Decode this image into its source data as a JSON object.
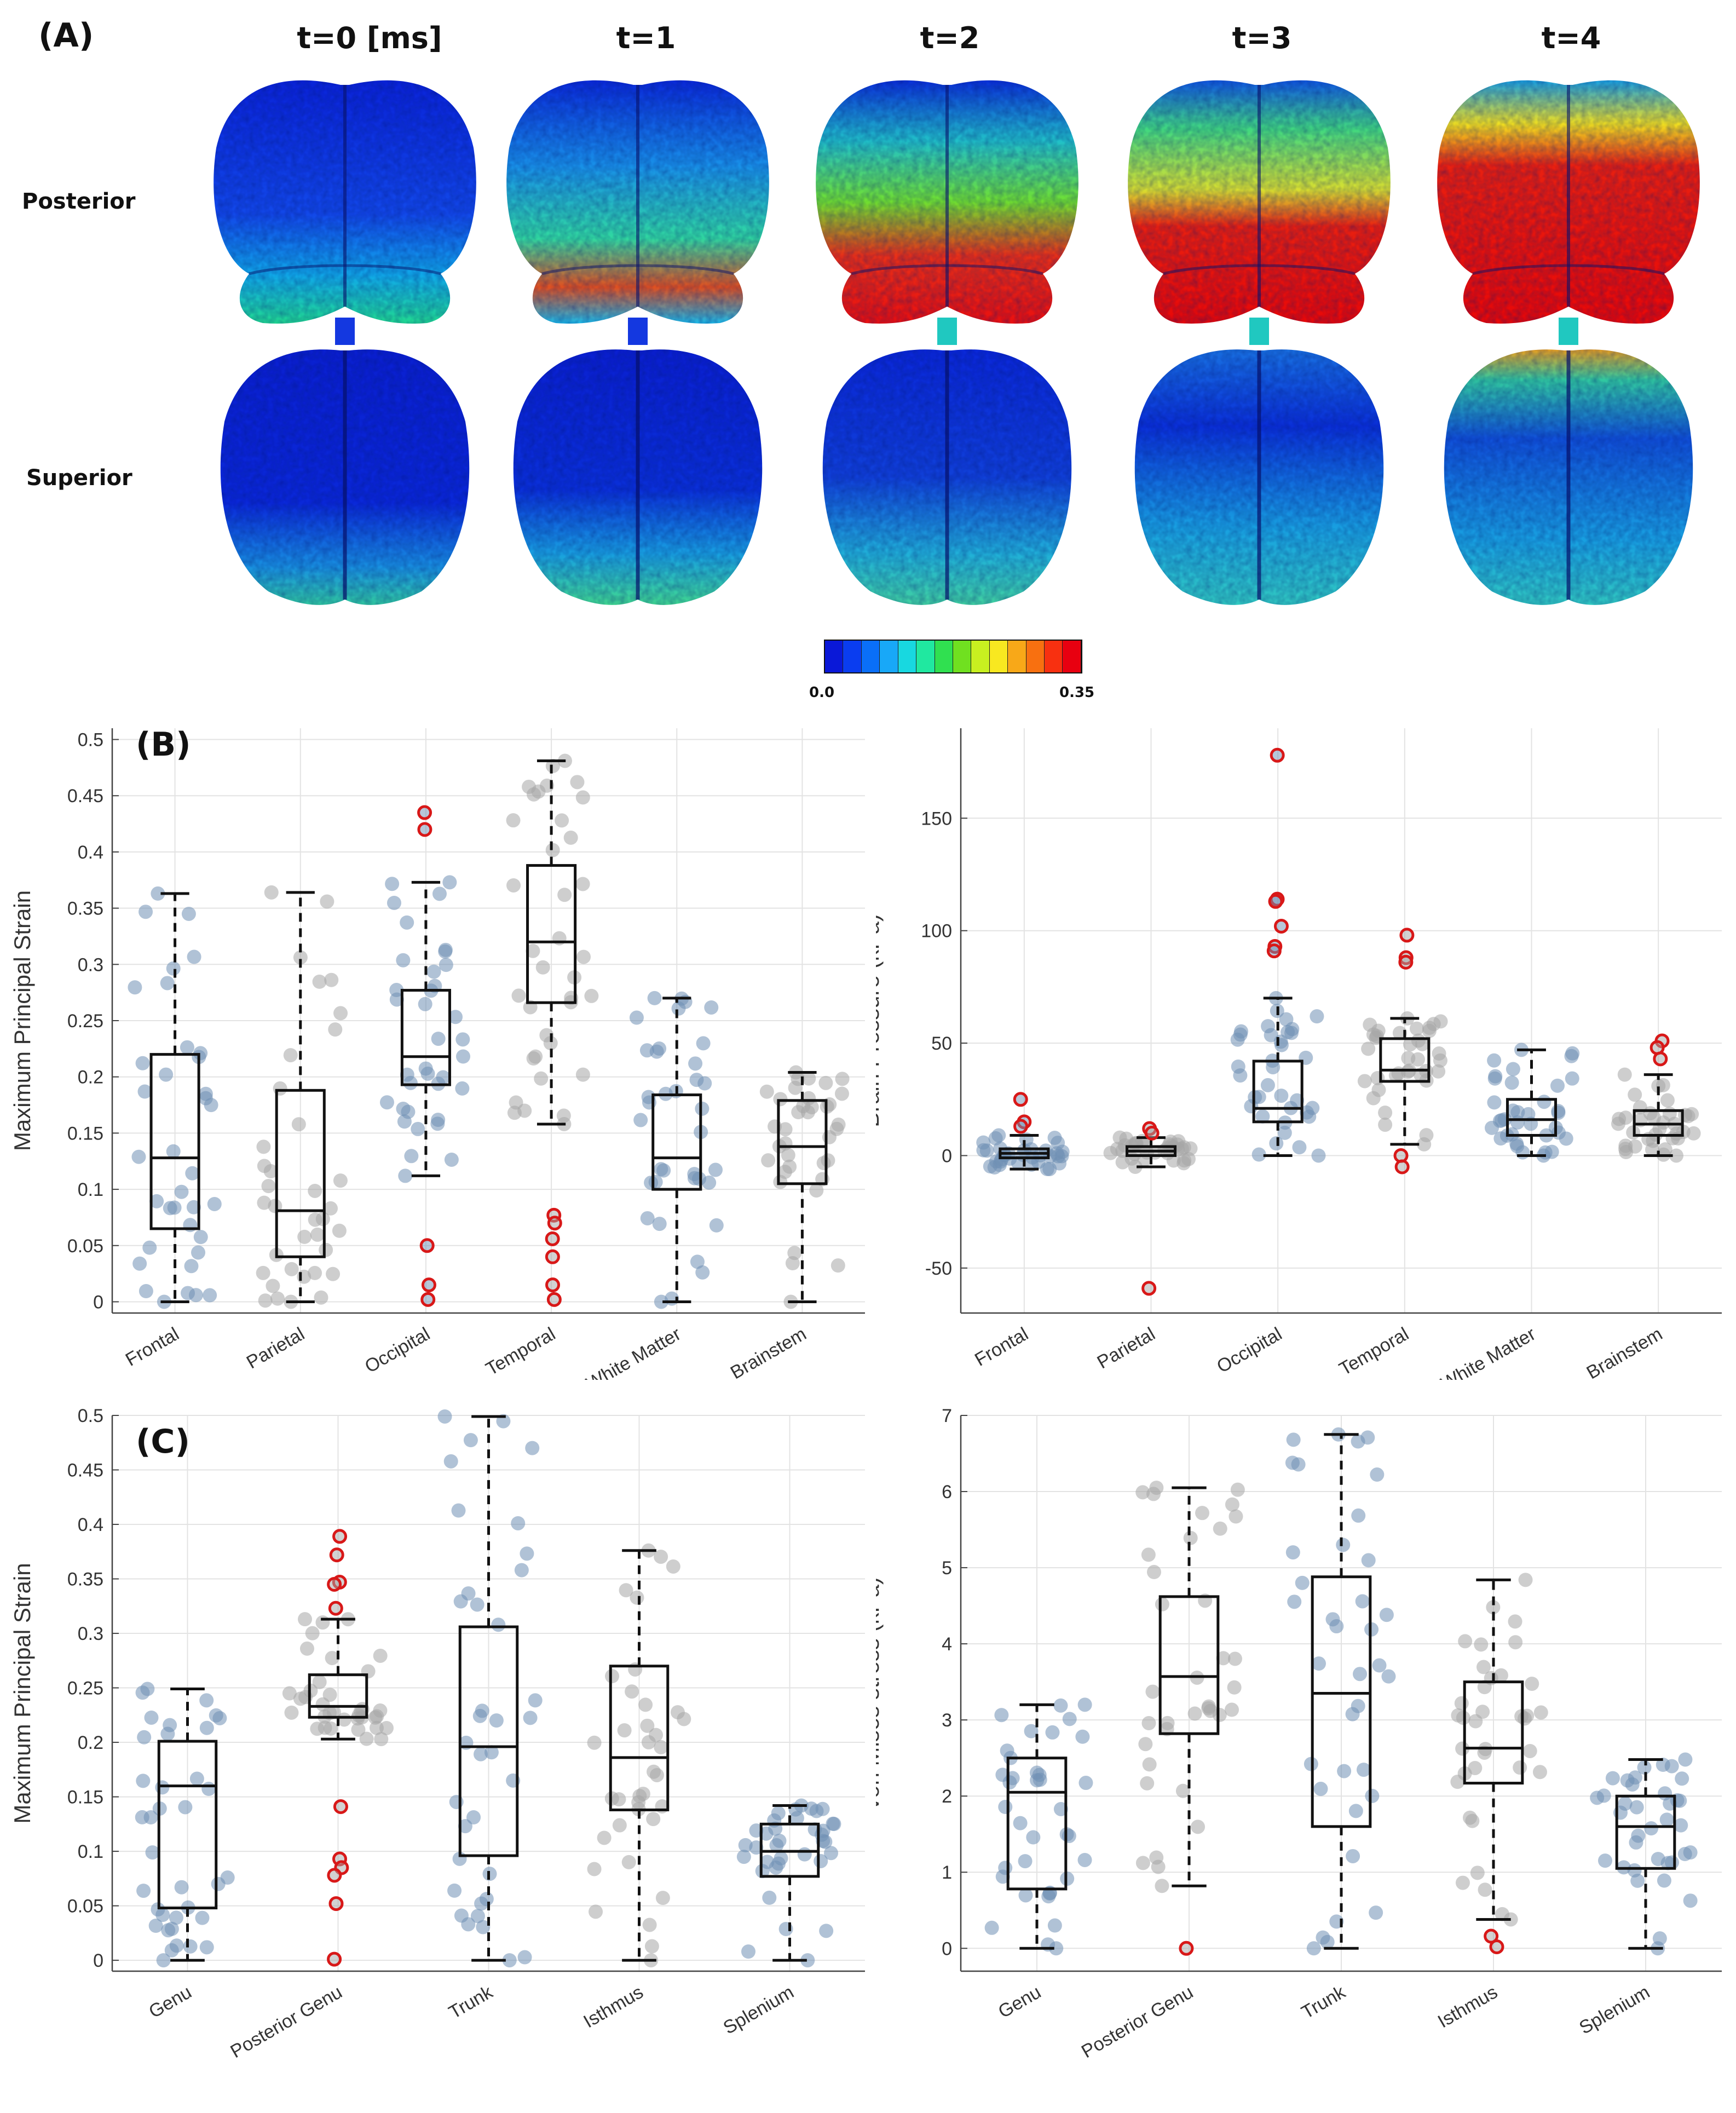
{
  "panels": {
    "A": {
      "label": "(A)",
      "time_labels": [
        "t=0 [ms]",
        "t=1",
        "t=2",
        "t=3",
        "t=4"
      ],
      "view_labels": [
        "Posterior",
        "Superior"
      ],
      "colorbar": {
        "min_label": "0.0",
        "max_label": "0.35",
        "colors": [
          "#0a18d8",
          "#0a3df0",
          "#0a6ff8",
          "#18a8f8",
          "#18d8e0",
          "#20e8a0",
          "#30e050",
          "#70e020",
          "#c8f020",
          "#f8e820",
          "#f8a818",
          "#f87010",
          "#f83010",
          "#e80010"
        ]
      }
    },
    "B": {
      "label": "(B)"
    },
    "C": {
      "label": "(C)"
    }
  },
  "chart_data": [
    {
      "type": "box",
      "panel": "B-left",
      "ylabel": "Maximum Principal Strain",
      "ylim": [
        -0.01,
        0.51
      ],
      "yticks": [
        0,
        0.05,
        0.1,
        0.15,
        0.2,
        0.25,
        0.3,
        0.35,
        0.4,
        0.45,
        0.5
      ],
      "ytick_labels": [
        "0",
        "0.05",
        "0.1",
        "0.15",
        "0.2",
        "0.25",
        "0.3",
        "0.35",
        "0.4",
        "0.45",
        "0.5"
      ],
      "categories": [
        "Frontal",
        "Parietal",
        "Occipital",
        "Temporal",
        "White Matter",
        "Brainstem"
      ],
      "boxes": [
        {
          "q1": 0.065,
          "median": 0.128,
          "q3": 0.22,
          "whisker_low": 0.0,
          "whisker_high": 0.363,
          "outliers": [],
          "point_color": "blue"
        },
        {
          "q1": 0.04,
          "median": 0.081,
          "q3": 0.188,
          "whisker_low": 0.0,
          "whisker_high": 0.364,
          "outliers": [],
          "point_color": "gray"
        },
        {
          "q1": 0.193,
          "median": 0.218,
          "q3": 0.277,
          "whisker_low": 0.112,
          "whisker_high": 0.373,
          "outliers": [
            0.435,
            0.42,
            0.05,
            0.015,
            0.002
          ],
          "point_color": "blue"
        },
        {
          "q1": 0.266,
          "median": 0.32,
          "q3": 0.388,
          "whisker_low": 0.158,
          "whisker_high": 0.481,
          "outliers": [
            0.077,
            0.07,
            0.056,
            0.04,
            0.015,
            0.002
          ],
          "point_color": "gray"
        },
        {
          "q1": 0.1,
          "median": 0.128,
          "q3": 0.184,
          "whisker_low": 0.0,
          "whisker_high": 0.27,
          "outliers": [],
          "point_color": "blue"
        },
        {
          "q1": 0.105,
          "median": 0.138,
          "q3": 0.179,
          "whisker_low": 0.0,
          "whisker_high": 0.204,
          "outliers": [],
          "point_color": "gray"
        }
      ]
    },
    {
      "type": "box",
      "panel": "B-right",
      "ylabel": "Brain Pressure (kPa)",
      "ylim": [
        -70,
        190
      ],
      "yticks": [
        -50,
        0,
        50,
        100,
        150
      ],
      "ytick_labels": [
        "-50",
        "0",
        "50",
        "100",
        "150"
      ],
      "categories": [
        "Frontal",
        "Parietal",
        "Occipital",
        "Temporal",
        "White Matter",
        "Brainstem"
      ],
      "boxes": [
        {
          "q1": -1,
          "median": 1,
          "q3": 3,
          "whisker_low": -6,
          "whisker_high": 9,
          "outliers": [
            25,
            15,
            13
          ],
          "point_color": "blue"
        },
        {
          "q1": 0,
          "median": 2,
          "q3": 4,
          "whisker_low": -5,
          "whisker_high": 8,
          "outliers": [
            12,
            10,
            -59
          ],
          "point_color": "gray"
        },
        {
          "q1": 15,
          "median": 21,
          "q3": 42,
          "whisker_low": 0,
          "whisker_high": 70,
          "outliers": [
            178,
            114,
            113,
            102,
            93,
            91
          ],
          "point_color": "blue"
        },
        {
          "q1": 33,
          "median": 38,
          "q3": 52,
          "whisker_low": 5,
          "whisker_high": 61,
          "outliers": [
            98,
            88,
            86,
            0,
            -5
          ],
          "point_color": "gray"
        },
        {
          "q1": 9,
          "median": 16,
          "q3": 25,
          "whisker_low": 0,
          "whisker_high": 47,
          "outliers": [],
          "point_color": "blue"
        },
        {
          "q1": 9,
          "median": 14,
          "q3": 20,
          "whisker_low": 0,
          "whisker_high": 36,
          "outliers": [
            51,
            48,
            43
          ],
          "point_color": "gray"
        }
      ]
    },
    {
      "type": "box",
      "panel": "C-left",
      "ylabel": "Maximum Principal Strain",
      "ylim": [
        -0.01,
        0.5
      ],
      "yticks": [
        0,
        0.05,
        0.1,
        0.15,
        0.2,
        0.25,
        0.3,
        0.35,
        0.4,
        0.45,
        0.5
      ],
      "ytick_labels": [
        "0",
        "0.05",
        "0.1",
        "0.15",
        "0.2",
        "0.25",
        "0.3",
        "0.35",
        "0.4",
        "0.45",
        "0.5"
      ],
      "categories": [
        "Genu",
        "Posterior Genu",
        "Trunk",
        "Isthmus",
        "Splenium"
      ],
      "boxes": [
        {
          "q1": 0.048,
          "median": 0.16,
          "q3": 0.201,
          "whisker_low": 0.0,
          "whisker_high": 0.249,
          "outliers": [],
          "point_color": "blue"
        },
        {
          "q1": 0.223,
          "median": 0.233,
          "q3": 0.262,
          "whisker_low": 0.203,
          "whisker_high": 0.313,
          "outliers": [
            0.389,
            0.372,
            0.347,
            0.345,
            0.323,
            0.141,
            0.093,
            0.085,
            0.078,
            0.052,
            0.001
          ],
          "point_color": "gray"
        },
        {
          "q1": 0.096,
          "median": 0.196,
          "q3": 0.306,
          "whisker_low": 0.0,
          "whisker_high": 0.499,
          "outliers": [],
          "point_color": "blue"
        },
        {
          "q1": 0.138,
          "median": 0.186,
          "q3": 0.27,
          "whisker_low": 0.0,
          "whisker_high": 0.376,
          "outliers": [],
          "point_color": "gray"
        },
        {
          "q1": 0.077,
          "median": 0.1,
          "q3": 0.125,
          "whisker_low": 0.0,
          "whisker_high": 0.142,
          "outliers": [],
          "point_color": "blue"
        }
      ]
    },
    {
      "type": "box",
      "panel": "C-right",
      "ylabel": "von Mises stress (kPa)",
      "ylim": [
        -0.3,
        7.0
      ],
      "yticks": [
        0,
        1,
        2,
        3,
        4,
        5,
        6,
        7
      ],
      "ytick_labels": [
        "0",
        "1",
        "2",
        "3",
        "4",
        "5",
        "6",
        "7"
      ],
      "categories": [
        "Genu",
        "Posterior Genu",
        "Trunk",
        "Isthmus",
        "Splenium"
      ],
      "boxes": [
        {
          "q1": 0.78,
          "median": 2.05,
          "q3": 2.5,
          "whisker_low": 0.0,
          "whisker_high": 3.2,
          "outliers": [],
          "point_color": "blue"
        },
        {
          "q1": 2.82,
          "median": 3.57,
          "q3": 4.62,
          "whisker_low": 0.82,
          "whisker_high": 6.05,
          "outliers": [
            0.0
          ],
          "point_color": "gray"
        },
        {
          "q1": 1.6,
          "median": 3.35,
          "q3": 4.88,
          "whisker_low": 0.0,
          "whisker_high": 6.75,
          "outliers": [],
          "point_color": "blue"
        },
        {
          "q1": 2.17,
          "median": 2.63,
          "q3": 3.5,
          "whisker_low": 0.38,
          "whisker_high": 4.84,
          "outliers": [
            0.16,
            0.02
          ],
          "point_color": "gray"
        },
        {
          "q1": 1.05,
          "median": 1.6,
          "q3": 2.0,
          "whisker_low": 0.0,
          "whisker_high": 2.48,
          "outliers": [],
          "point_color": "blue"
        }
      ]
    }
  ]
}
